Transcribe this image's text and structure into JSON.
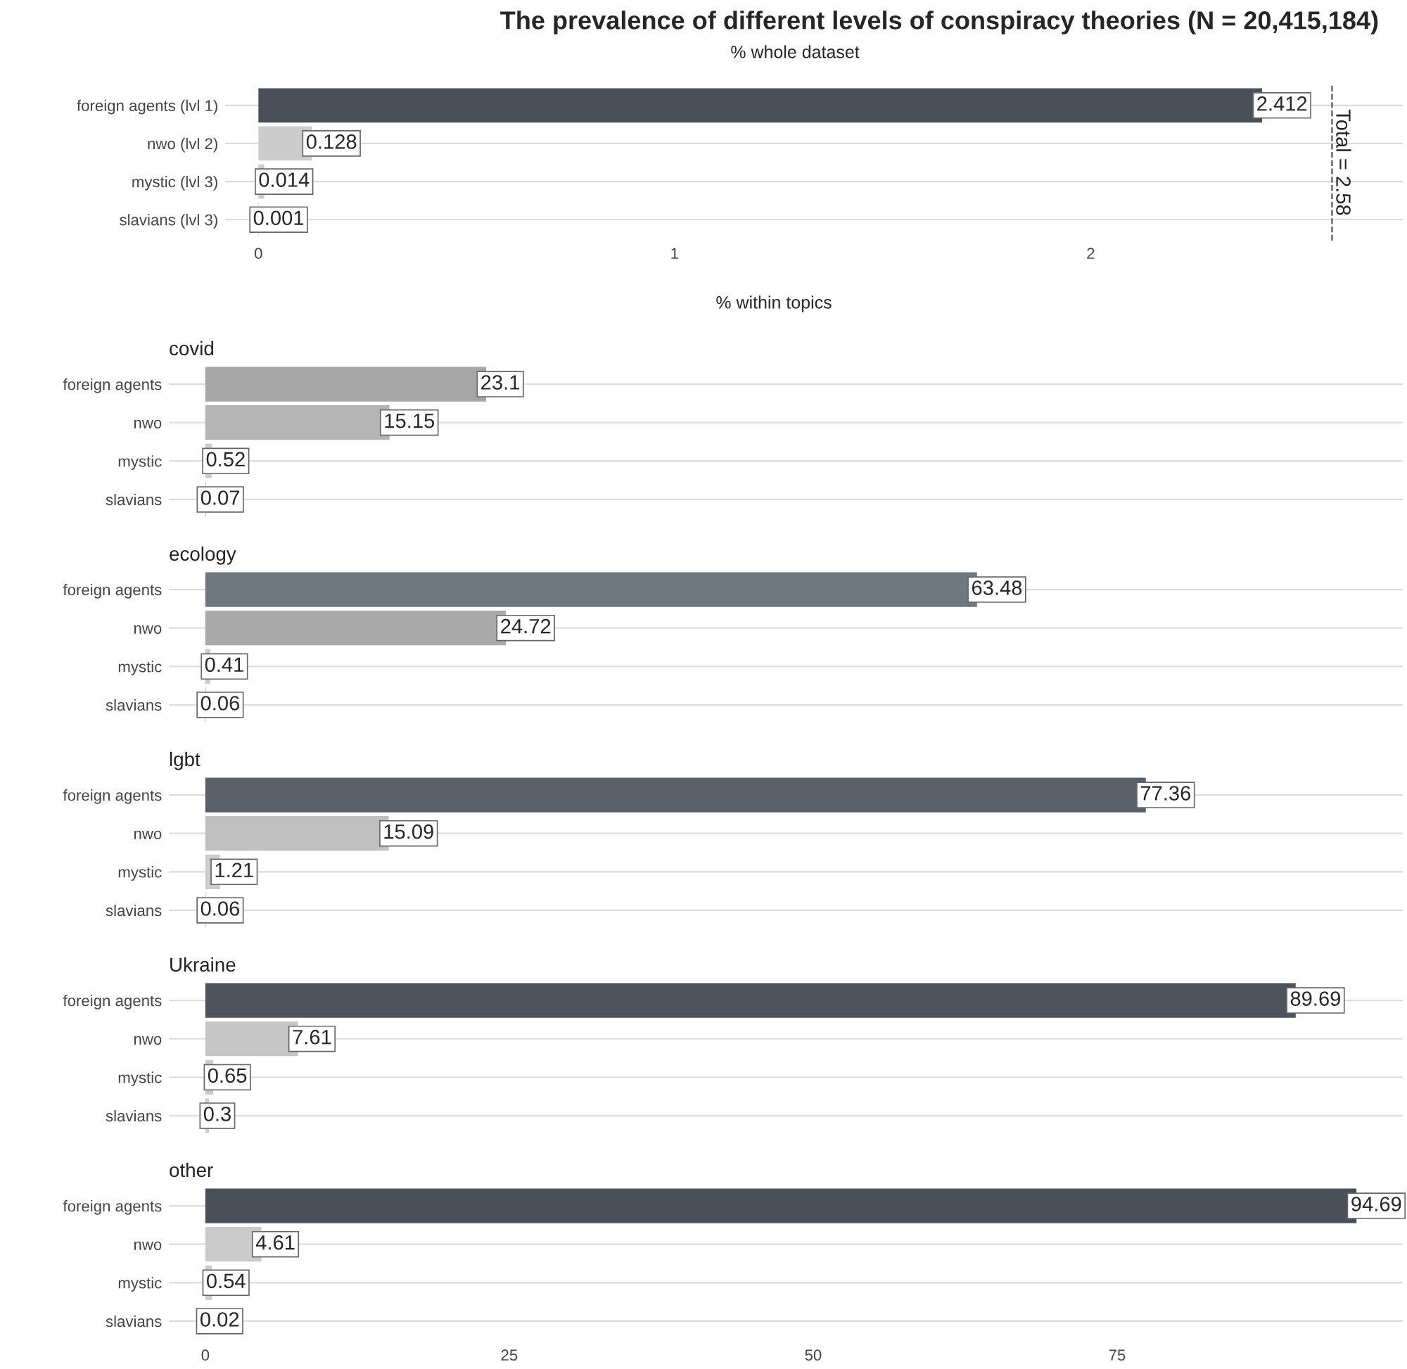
{
  "chart_data": [
    {
      "type": "bar",
      "orientation": "horizontal",
      "title": "The prevalence of different levels of conspiracy theories (N = 20,415,184)",
      "subtitle": "% whole dataset",
      "categories": [
        "foreign agents (lvl 1)",
        "nwo (lvl 2)",
        "mystic (lvl 3)",
        "slavians (lvl 3)"
      ],
      "values": [
        2.412,
        0.128,
        0.014,
        0.001
      ],
      "colors": [
        "#4a4f5a",
        "#cccccc",
        "#cccccc",
        "#cccccc"
      ],
      "data_labels": true,
      "xlim": [
        -0.08,
        2.75
      ],
      "xticks": [
        0,
        1,
        2
      ],
      "grid": "y",
      "legend": false,
      "ref_lines": [
        {
          "axis": "x",
          "value": 2.58,
          "label": "Total = 2.58",
          "line_style": "dashed",
          "color": "#555555"
        }
      ]
    },
    {
      "type": "bar",
      "orientation": "horizontal",
      "title": "covid",
      "annotations": [
        "% within topics"
      ],
      "categories": [
        "foreign agents",
        "nwo",
        "mystic",
        "slavians"
      ],
      "values": [
        23.1,
        15.15,
        0.52,
        0.07
      ],
      "colors": [
        "#a6a6a6",
        "#b4b4b4",
        "#cccccc",
        "#cccccc"
      ],
      "data_labels": true,
      "xlim": [
        -3,
        98.5
      ],
      "xticks": [
        0,
        25,
        50,
        75
      ],
      "tick_labels": "y",
      "grid": "y",
      "legend": false
    },
    {
      "type": "bar",
      "orientation": "horizontal",
      "title": "ecology",
      "categories": [
        "foreign agents",
        "nwo",
        "mystic",
        "slavians"
      ],
      "values": [
        63.48,
        24.72,
        0.41,
        0.06
      ],
      "colors": [
        "#6d7880",
        "#a9a9a9",
        "#cccccc",
        "#cccccc"
      ],
      "data_labels": true,
      "xlim": [
        -3,
        98.5
      ],
      "xticks": [
        0,
        25,
        50,
        75
      ],
      "tick_labels": "y",
      "grid": "y",
      "legend": false
    },
    {
      "type": "bar",
      "orientation": "horizontal",
      "title": "lgbt",
      "categories": [
        "foreign agents",
        "nwo",
        "mystic",
        "slavians"
      ],
      "values": [
        77.36,
        15.09,
        1.21,
        0.06
      ],
      "colors": [
        "#5a6068",
        "#c0c0c0",
        "#cccccc",
        "#cccccc"
      ],
      "data_labels": true,
      "xlim": [
        -3,
        98.5
      ],
      "xticks": [
        0,
        25,
        50,
        75
      ],
      "tick_labels": "y",
      "grid": "y",
      "legend": false
    },
    {
      "type": "bar",
      "orientation": "horizontal",
      "title": "Ukraine",
      "categories": [
        "foreign agents",
        "nwo",
        "mystic",
        "slavians"
      ],
      "values": [
        89.69,
        7.61,
        0.65,
        0.3
      ],
      "colors": [
        "#4e535d",
        "#c6c6c6",
        "#cccccc",
        "#cccccc"
      ],
      "data_labels": true,
      "xlim": [
        -3,
        98.5
      ],
      "xticks": [
        0,
        25,
        50,
        75
      ],
      "tick_labels": "y",
      "grid": "y",
      "legend": false
    },
    {
      "type": "bar",
      "orientation": "horizontal",
      "title": "other",
      "categories": [
        "foreign agents",
        "nwo",
        "mystic",
        "slavians"
      ],
      "values": [
        94.69,
        4.61,
        0.54,
        0.02
      ],
      "colors": [
        "#4a4f5a",
        "#cacaca",
        "#cccccc",
        "#cccccc"
      ],
      "data_labels": true,
      "xlim": [
        -3,
        98.5
      ],
      "xticks": [
        0,
        25,
        50,
        75
      ],
      "grid": "y",
      "legend": false
    }
  ]
}
